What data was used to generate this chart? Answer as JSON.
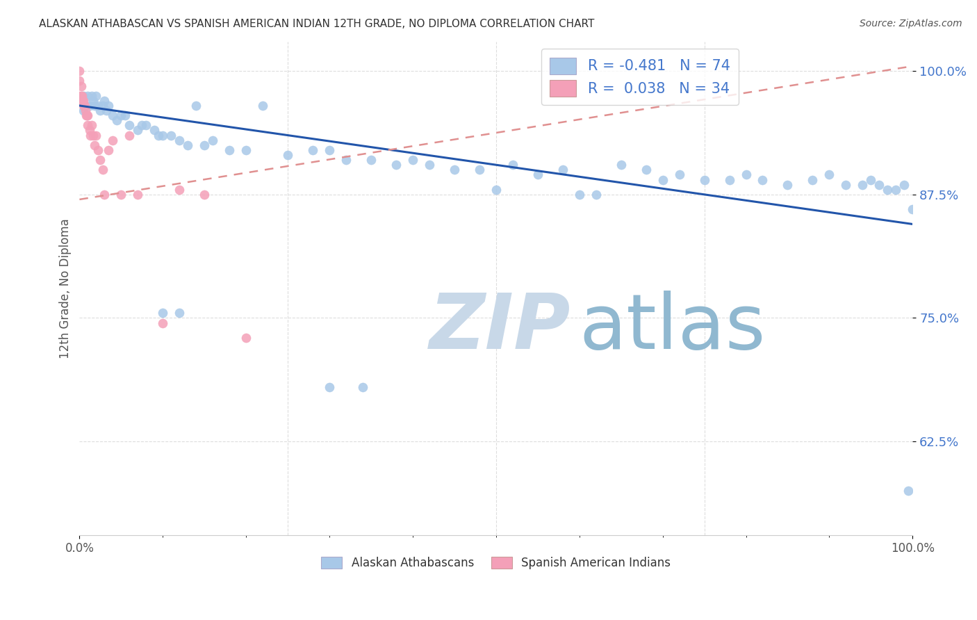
{
  "title": "ALASKAN ATHABASCAN VS SPANISH AMERICAN INDIAN 12TH GRADE, NO DIPLOMA CORRELATION CHART",
  "source": "Source: ZipAtlas.com",
  "ylabel": "12th Grade, No Diploma",
  "ytick_values": [
    1.0,
    0.875,
    0.75,
    0.625
  ],
  "xlim": [
    0.0,
    1.0
  ],
  "ylim": [
    0.53,
    1.03
  ],
  "blue_r": -0.481,
  "blue_n": 74,
  "pink_r": 0.038,
  "pink_n": 34,
  "blue_color": "#a8c8e8",
  "pink_color": "#f4a0b8",
  "trendline_blue_color": "#2255aa",
  "trendline_pink_color": "#e09090",
  "blue_trendline_x0": 0.0,
  "blue_trendline_y0": 0.965,
  "blue_trendline_x1": 1.0,
  "blue_trendline_y1": 0.845,
  "pink_trendline_x0": 0.0,
  "pink_trendline_y0": 0.87,
  "pink_trendline_x1": 1.0,
  "pink_trendline_y1": 1.005,
  "blue_scatter_x": [
    0.005,
    0.005,
    0.01,
    0.012,
    0.015,
    0.016,
    0.018,
    0.02,
    0.022,
    0.025,
    0.028,
    0.03,
    0.032,
    0.035,
    0.04,
    0.045,
    0.05,
    0.055,
    0.06,
    0.07,
    0.075,
    0.08,
    0.09,
    0.095,
    0.1,
    0.11,
    0.12,
    0.13,
    0.14,
    0.15,
    0.16,
    0.18,
    0.2,
    0.22,
    0.25,
    0.28,
    0.3,
    0.32,
    0.35,
    0.38,
    0.4,
    0.42,
    0.45,
    0.48,
    0.5,
    0.52,
    0.55,
    0.58,
    0.6,
    0.62,
    0.65,
    0.68,
    0.7,
    0.72,
    0.75,
    0.78,
    0.8,
    0.82,
    0.85,
    0.88,
    0.9,
    0.92,
    0.94,
    0.95,
    0.96,
    0.97,
    0.98,
    0.99,
    0.995,
    1.0,
    0.3,
    0.34,
    0.1,
    0.12
  ],
  "blue_scatter_y": [
    0.975,
    0.96,
    0.975,
    0.965,
    0.975,
    0.97,
    0.965,
    0.975,
    0.965,
    0.96,
    0.965,
    0.97,
    0.96,
    0.965,
    0.955,
    0.95,
    0.955,
    0.955,
    0.945,
    0.94,
    0.945,
    0.945,
    0.94,
    0.935,
    0.935,
    0.935,
    0.93,
    0.925,
    0.965,
    0.925,
    0.93,
    0.92,
    0.92,
    0.965,
    0.915,
    0.92,
    0.92,
    0.91,
    0.91,
    0.905,
    0.91,
    0.905,
    0.9,
    0.9,
    0.88,
    0.905,
    0.895,
    0.9,
    0.875,
    0.875,
    0.905,
    0.9,
    0.89,
    0.895,
    0.89,
    0.89,
    0.895,
    0.89,
    0.885,
    0.89,
    0.895,
    0.885,
    0.885,
    0.89,
    0.885,
    0.88,
    0.88,
    0.885,
    0.575,
    0.86,
    0.68,
    0.68,
    0.755,
    0.755
  ],
  "pink_scatter_x": [
    0.0,
    0.0,
    0.0,
    0.002,
    0.002,
    0.003,
    0.004,
    0.005,
    0.005,
    0.006,
    0.007,
    0.008,
    0.009,
    0.01,
    0.01,
    0.012,
    0.013,
    0.015,
    0.016,
    0.018,
    0.02,
    0.022,
    0.025,
    0.028,
    0.03,
    0.035,
    0.04,
    0.05,
    0.06,
    0.07,
    0.1,
    0.12,
    0.15,
    0.2
  ],
  "pink_scatter_y": [
    1.0,
    0.99,
    0.975,
    0.985,
    0.975,
    0.975,
    0.97,
    0.97,
    0.965,
    0.965,
    0.96,
    0.955,
    0.955,
    0.955,
    0.945,
    0.94,
    0.935,
    0.945,
    0.935,
    0.925,
    0.935,
    0.92,
    0.91,
    0.9,
    0.875,
    0.92,
    0.93,
    0.875,
    0.935,
    0.875,
    0.745,
    0.88,
    0.875,
    0.73
  ],
  "grid_color": "#dddddd",
  "spine_color": "#cccccc",
  "ytick_color": "#4477cc",
  "xtick_label_left": "0.0%",
  "xtick_label_right": "100.0%",
  "watermark_zip_color": "#c8d8e8",
  "watermark_atlas_color": "#90b8d0"
}
